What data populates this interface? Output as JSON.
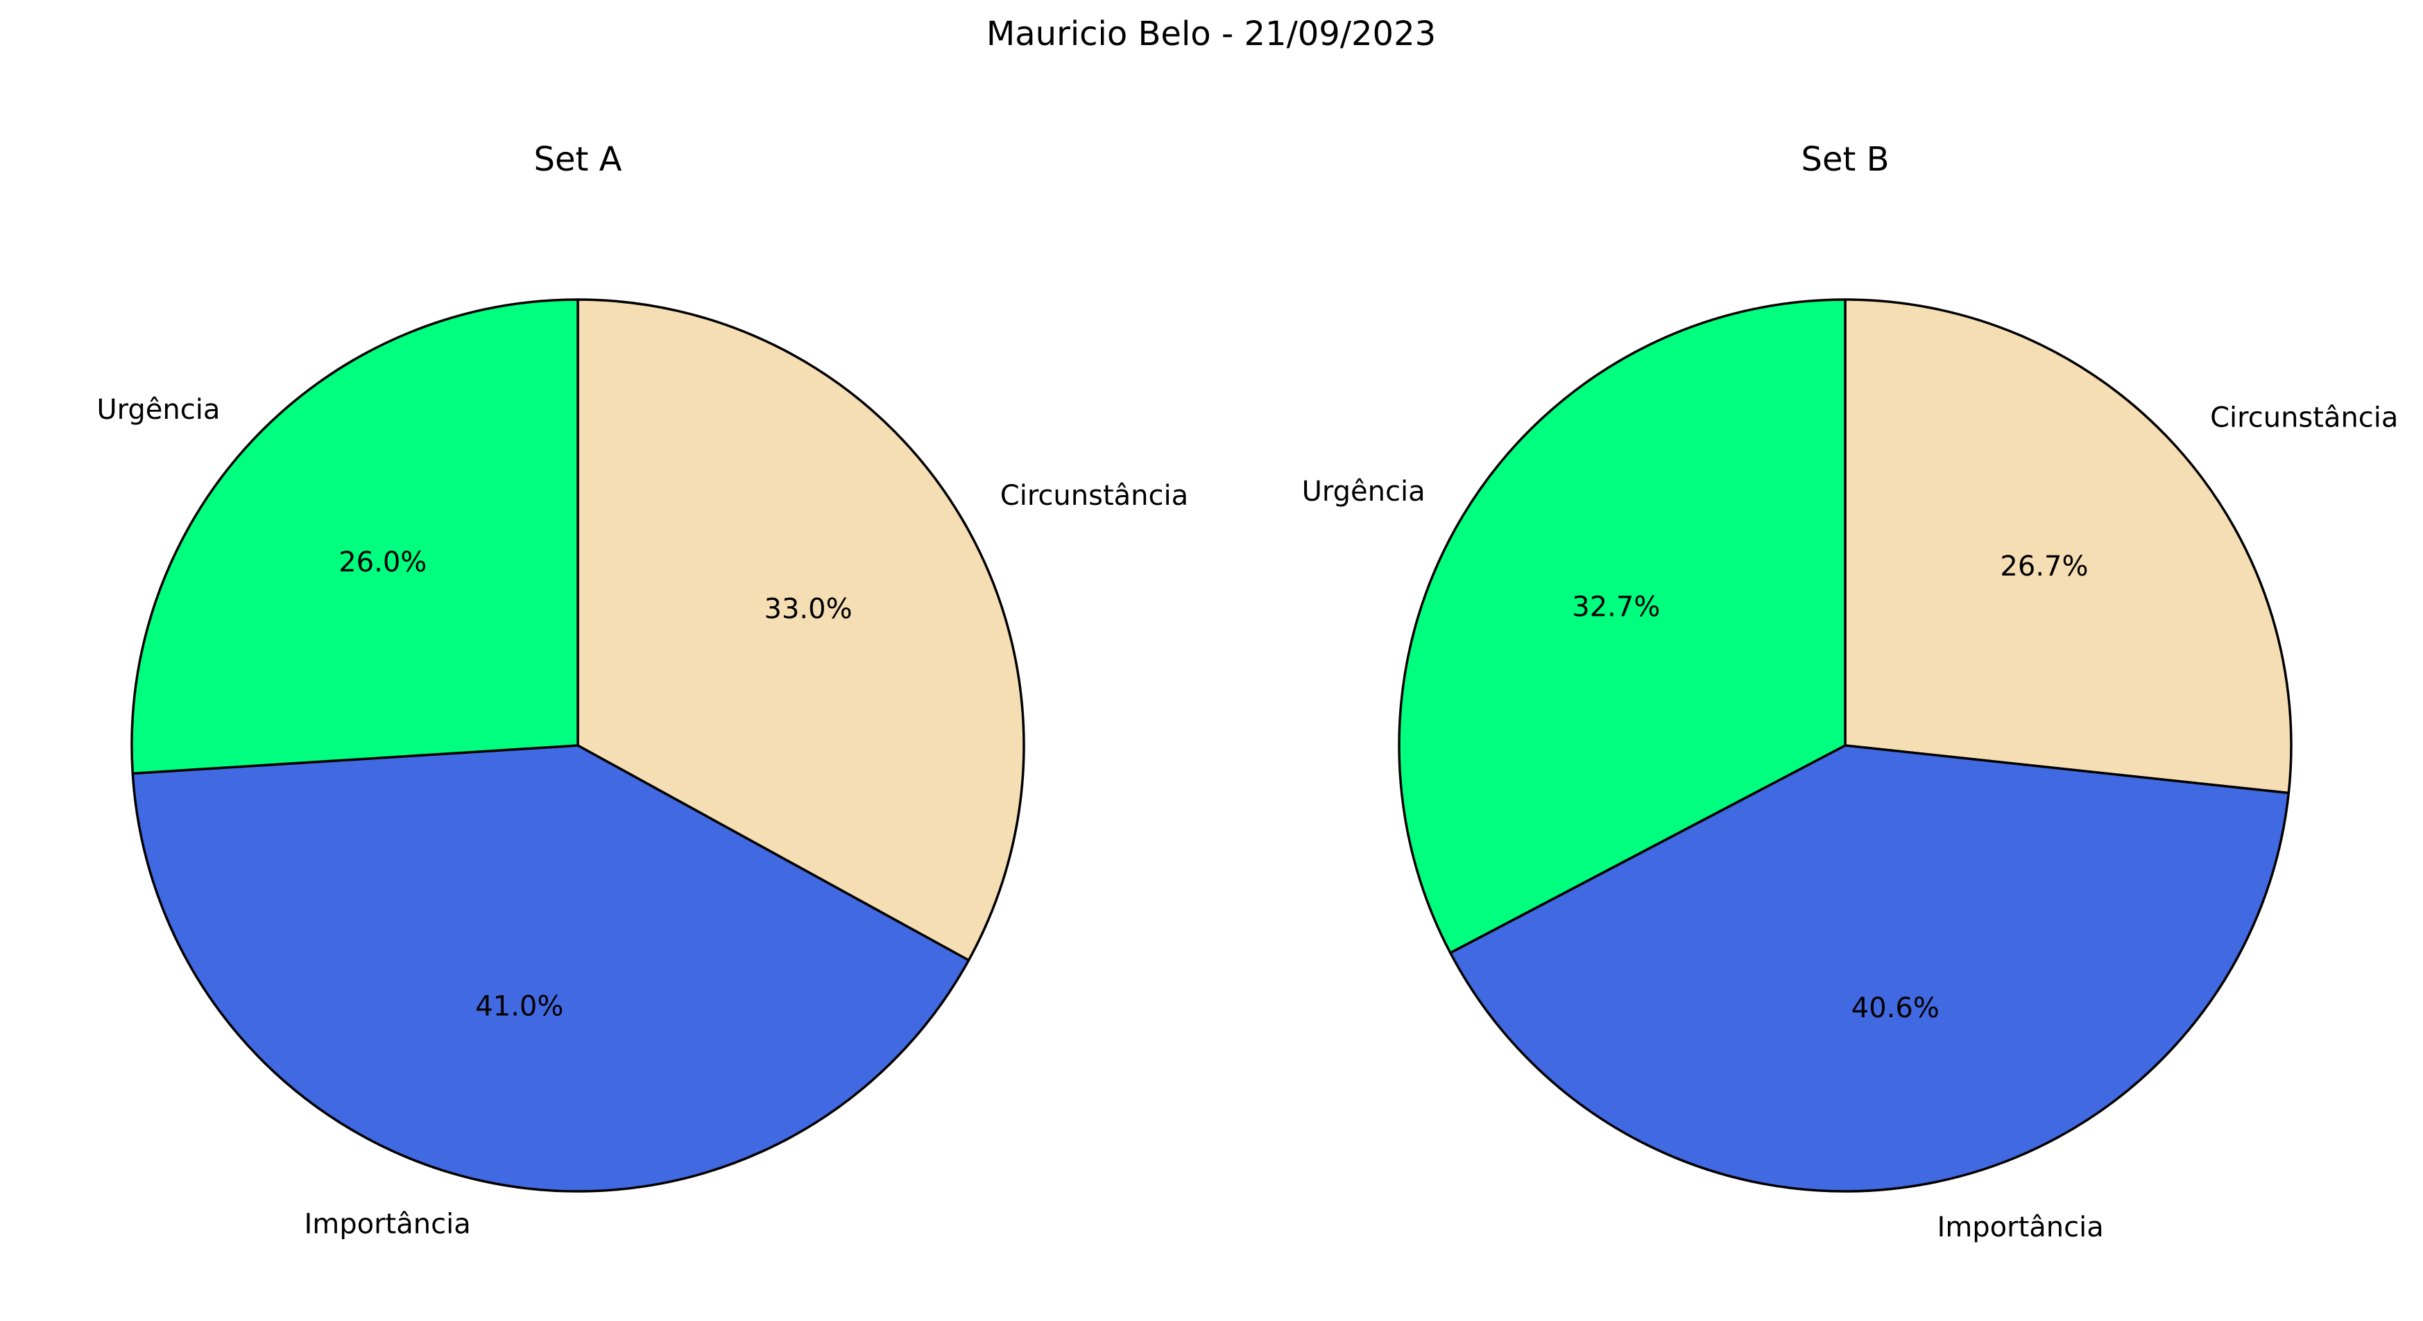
{
  "figure": {
    "suptitle": "Mauricio Belo - 21/09/2023"
  },
  "chart_data": [
    {
      "type": "pie",
      "title": "Set A",
      "labels": [
        "Circunstância",
        "Importância",
        "Urgência"
      ],
      "values": [
        33.0,
        41.0,
        26.0
      ],
      "percent_labels": [
        "33.0%",
        "41.0%",
        "26.0%"
      ],
      "colors": [
        "#F5DEB3",
        "#4169E1",
        "#00FF7F"
      ],
      "start_angle_deg": 90,
      "direction": "clockwise",
      "edge_color": "#000000"
    },
    {
      "type": "pie",
      "title": "Set B",
      "labels": [
        "Circunstância",
        "Importância",
        "Urgência"
      ],
      "values": [
        26.7,
        40.6,
        32.7
      ],
      "percent_labels": [
        "26.7%",
        "40.6%",
        "32.7%"
      ],
      "colors": [
        "#F5DEB3",
        "#4169E1",
        "#00FF7F"
      ],
      "start_angle_deg": 90,
      "direction": "clockwise",
      "edge_color": "#000000"
    }
  ]
}
